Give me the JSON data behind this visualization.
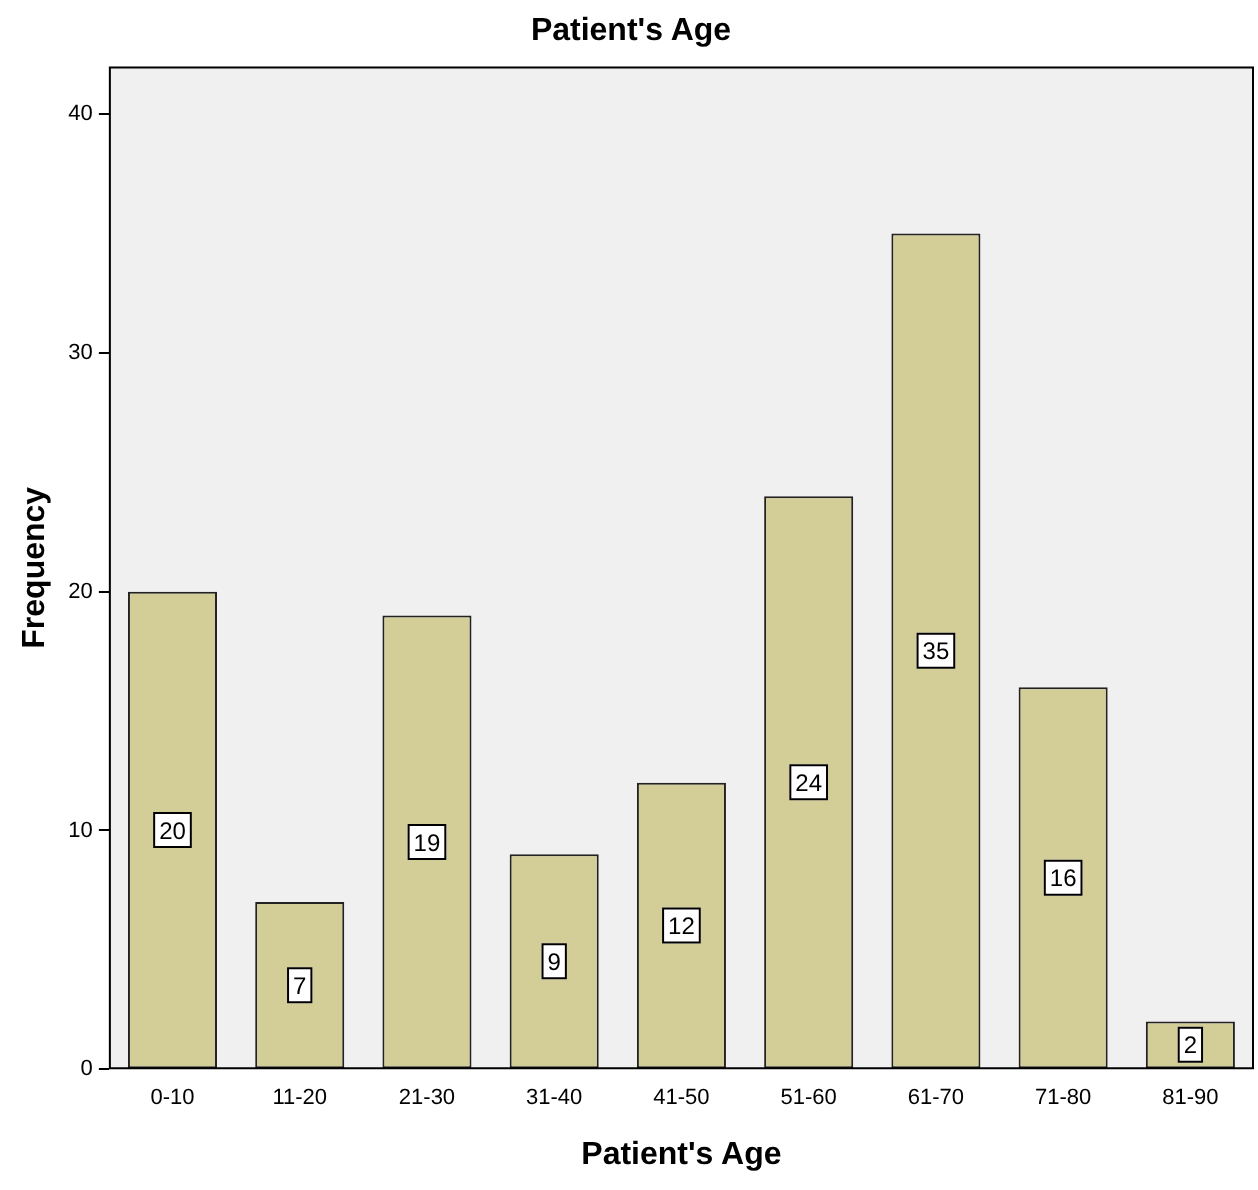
{
  "chart_data": {
    "type": "bar",
    "title": "Patient's Age",
    "xlabel": "Patient's Age",
    "ylabel": "Frequency",
    "categories": [
      "0-10",
      "11-20",
      "21-30",
      "31-40",
      "41-50",
      "51-60",
      "61-70",
      "71-80",
      "81-90"
    ],
    "values": [
      20,
      7,
      19,
      9,
      12,
      24,
      35,
      16,
      2
    ],
    "color": "#d3ce98",
    "ylim": [
      0,
      42
    ],
    "yticks": [
      0,
      10,
      20,
      30,
      40
    ],
    "grid": false,
    "legend": false,
    "data_labels": true
  }
}
